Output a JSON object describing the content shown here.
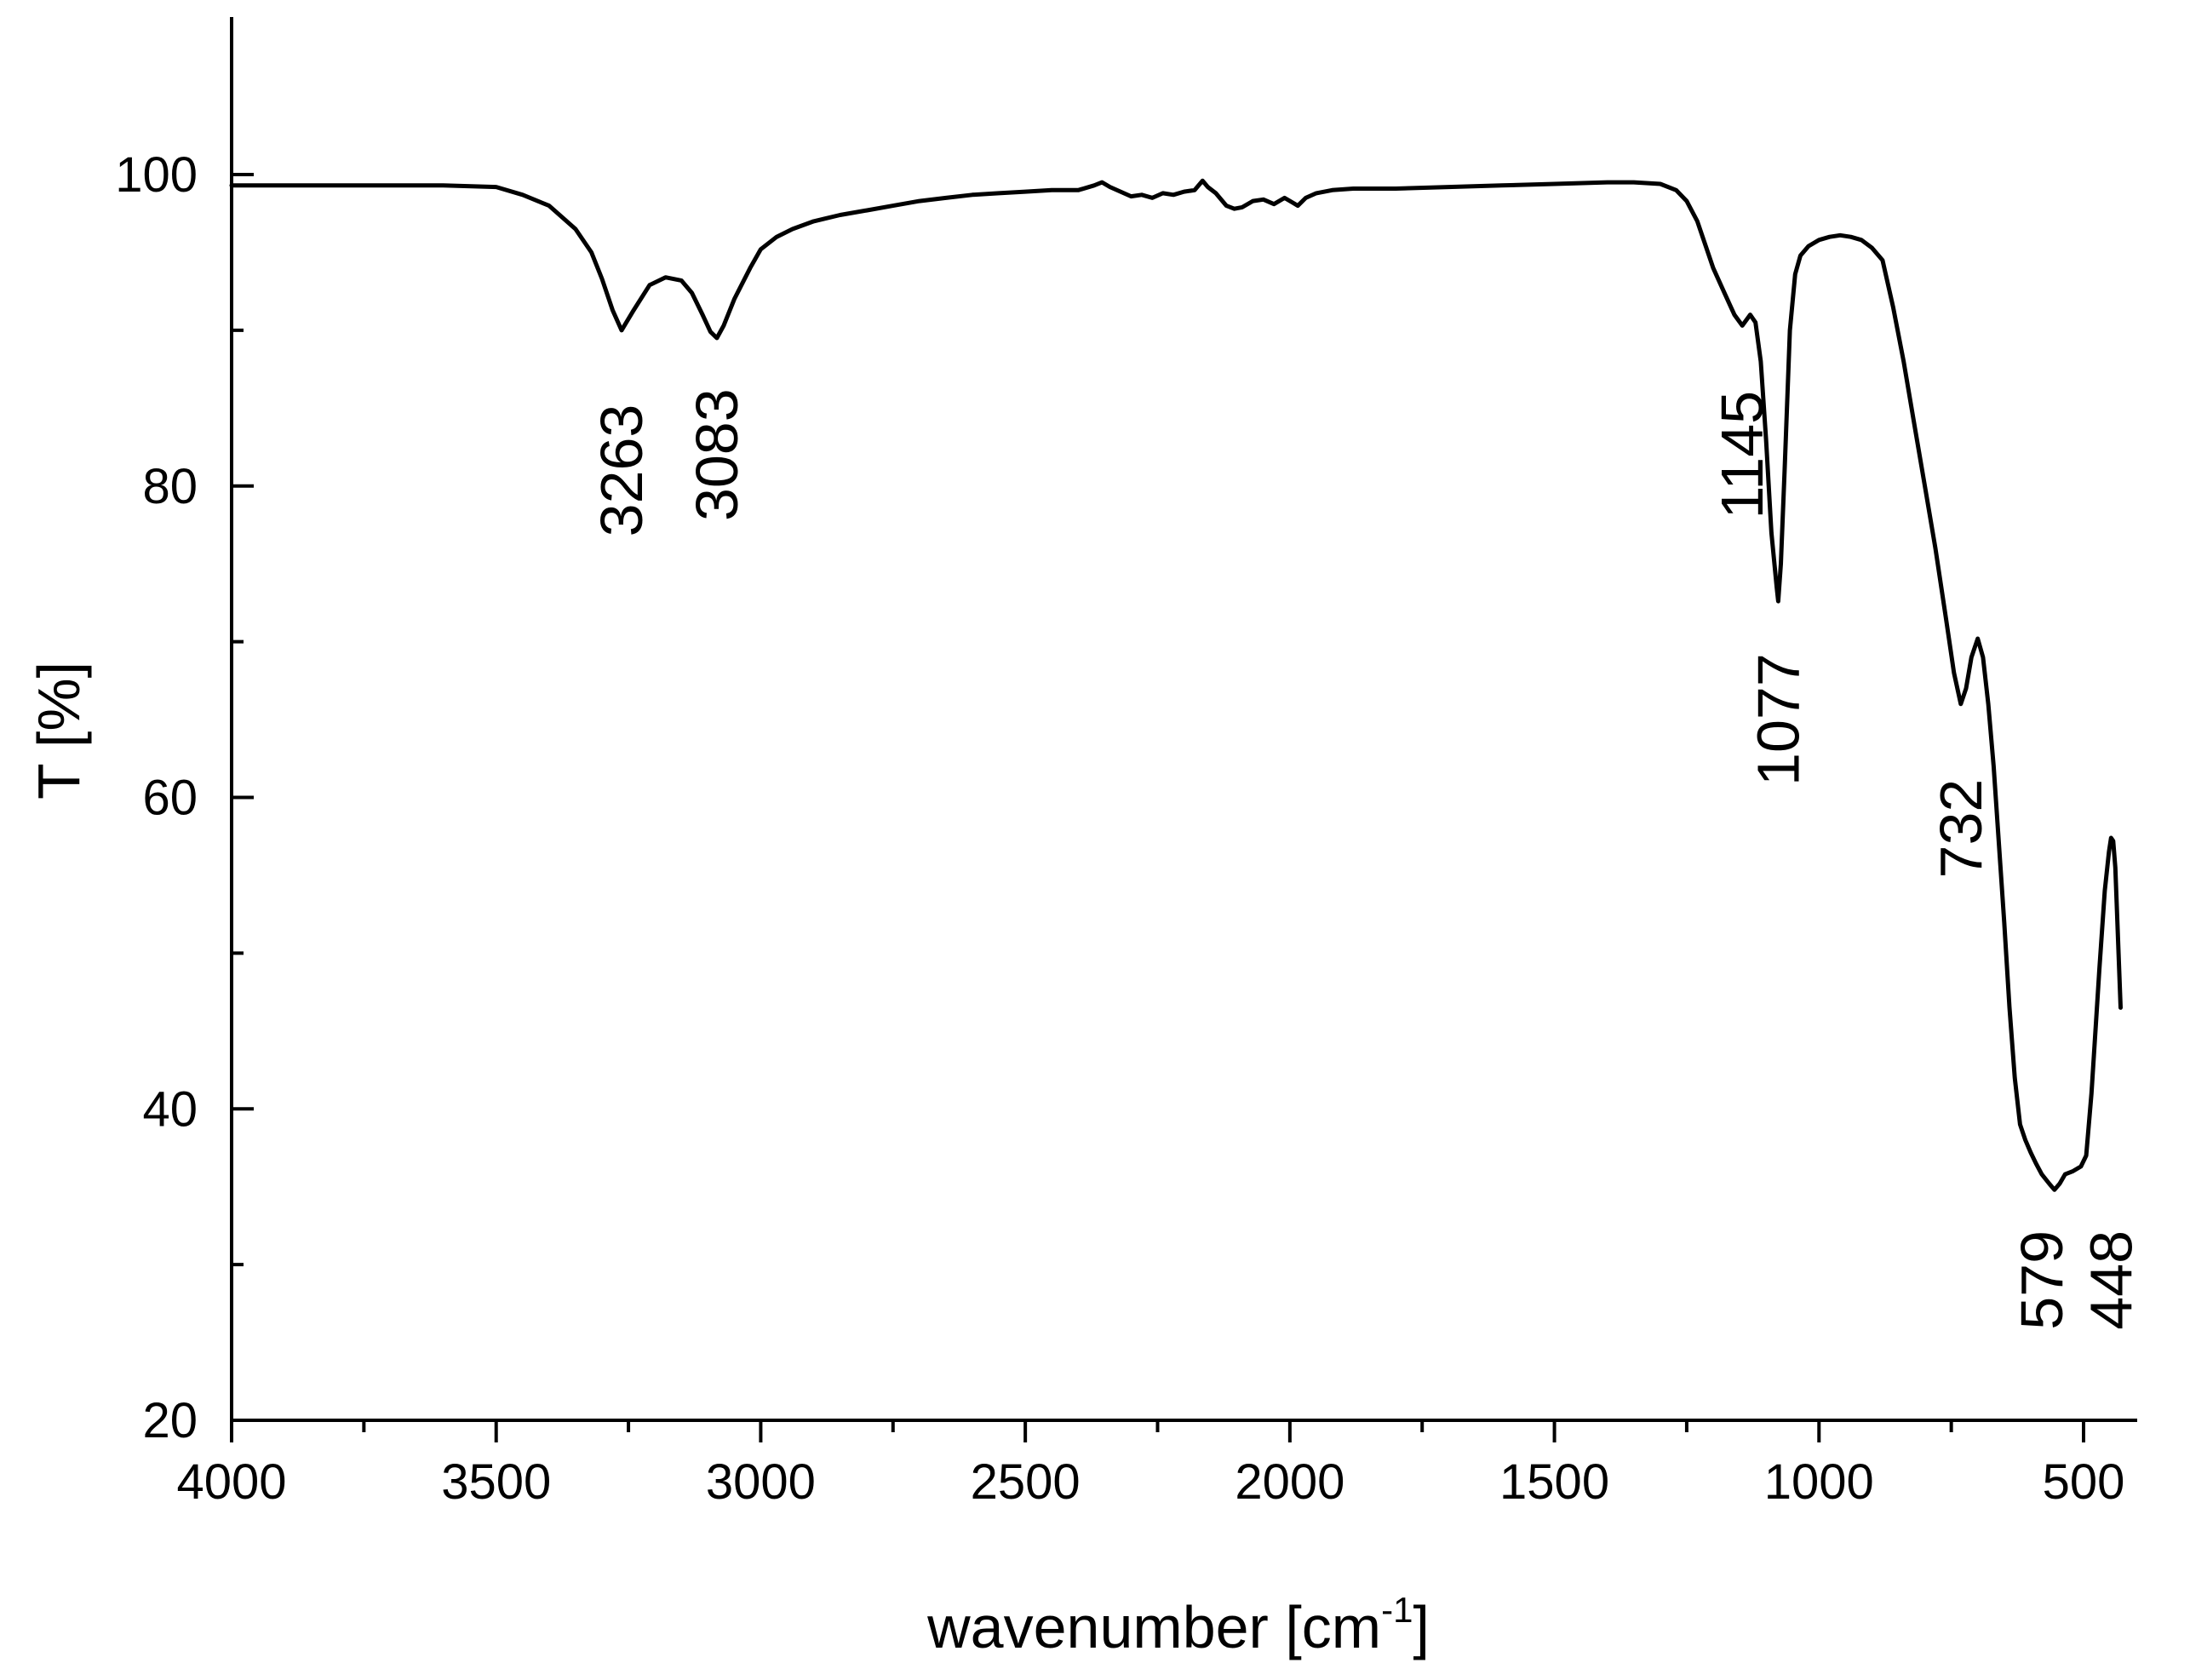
{
  "chart_data": {
    "type": "line",
    "xlabel_main": "wavenumber [cm",
    "xlabel_sup": "-1",
    "xlabel_close": "]",
    "ylabel": "T [%]",
    "xlim": [
      4000,
      400
    ],
    "x_reversed": true,
    "ylim": [
      20,
      110
    ],
    "grid": false,
    "x_ticks": [
      4000,
      3500,
      3000,
      2500,
      2000,
      1500,
      1000,
      500
    ],
    "x_minor_ticks": [
      3750,
      3250,
      2750,
      2250,
      1750,
      1250,
      750
    ],
    "y_ticks": [
      20,
      40,
      60,
      80,
      100
    ],
    "y_minor_ticks": [
      30,
      50,
      70,
      90
    ],
    "x_tick_labels": [
      "4000",
      "3500",
      "3000",
      "2500",
      "2000",
      "1500",
      "1000",
      "500"
    ],
    "y_tick_labels": [
      "20",
      "40",
      "60",
      "80",
      "100"
    ],
    "series": [
      {
        "x": [
          4000,
          3800,
          3600,
          3500,
          3450,
          3400,
          3350,
          3320,
          3300,
          3280,
          3263,
          3240,
          3210,
          3180,
          3150,
          3130,
          3110,
          3095,
          3083,
          3070,
          3050,
          3020,
          3000,
          2970,
          2940,
          2900,
          2850,
          2800,
          2750,
          2700,
          2650,
          2600,
          2550,
          2500,
          2450,
          2400,
          2370,
          2355,
          2340,
          2320,
          2300,
          2280,
          2260,
          2240,
          2220,
          2200,
          2180,
          2165,
          2155,
          2140,
          2120,
          2105,
          2090,
          2070,
          2050,
          2030,
          2010,
          1995,
          1985,
          1970,
          1950,
          1920,
          1880,
          1800,
          1700,
          1600,
          1500,
          1400,
          1350,
          1300,
          1270,
          1250,
          1230,
          1200,
          1180,
          1160,
          1145,
          1130,
          1120,
          1110,
          1100,
          1090,
          1080,
          1077,
          1072,
          1065,
          1055,
          1045,
          1035,
          1020,
          1000,
          980,
          960,
          940,
          920,
          900,
          880,
          860,
          840,
          820,
          800,
          780,
          760,
          745,
          732,
          722,
          712,
          700,
          690,
          680,
          670,
          660,
          650,
          640,
          630,
          620,
          610,
          600,
          590,
          579,
          565,
          555,
          545,
          535,
          520,
          505,
          495,
          485,
          470,
          460,
          452,
          448,
          444,
          440,
          430
        ],
        "y": [
          99.3,
          99.3,
          99.3,
          99.2,
          98.7,
          98.0,
          96.5,
          95.0,
          93.3,
          91.3,
          90.0,
          91.3,
          92.9,
          93.4,
          93.2,
          92.4,
          91.0,
          89.9,
          89.5,
          90.3,
          92.0,
          94.0,
          95.2,
          96.0,
          96.5,
          97.0,
          97.4,
          97.7,
          98.0,
          98.3,
          98.5,
          98.7,
          98.8,
          98.9,
          99.0,
          99.0,
          99.3,
          99.5,
          99.2,
          98.9,
          98.6,
          98.7,
          98.5,
          98.8,
          98.7,
          98.9,
          99.0,
          99.6,
          99.2,
          98.8,
          98.0,
          97.8,
          97.9,
          98.3,
          98.4,
          98.1,
          98.5,
          98.2,
          98.0,
          98.5,
          98.8,
          99.0,
          99.1,
          99.1,
          99.2,
          99.3,
          99.4,
          99.5,
          99.5,
          99.4,
          99.0,
          98.3,
          97.0,
          94.0,
          92.5,
          91.0,
          90.3,
          91.0,
          90.5,
          88.0,
          83.0,
          77.0,
          73.5,
          72.6,
          75.0,
          81.0,
          90.0,
          93.6,
          94.8,
          95.4,
          95.8,
          96.0,
          96.1,
          96.0,
          95.8,
          95.3,
          94.5,
          91.5,
          88.0,
          84.0,
          80.0,
          76.0,
          71.5,
          68.0,
          66.0,
          67.0,
          69.0,
          70.2,
          69.0,
          66.0,
          62.0,
          57.0,
          52.0,
          46.5,
          42.0,
          39.0,
          38.0,
          37.2,
          36.5,
          35.8,
          35.2,
          34.8,
          35.2,
          35.8,
          36.0,
          36.3,
          37.0,
          41.0,
          49.0,
          54.0,
          56.5,
          57.4,
          57.2,
          55.5,
          46.5
        ]
      }
    ],
    "annotations": [
      {
        "text": "3263",
        "x": 3263,
        "y": 81
      },
      {
        "text": "3083",
        "x": 3083,
        "y": 82
      },
      {
        "text": "1145",
        "x": 1145,
        "y": 82
      },
      {
        "text": "1077",
        "x": 1077,
        "y": 65
      },
      {
        "text": "732",
        "x": 732,
        "y": 58
      },
      {
        "text": "579",
        "x": 579,
        "y": 29
      },
      {
        "text": "448",
        "x": 448,
        "y": 29
      }
    ]
  }
}
